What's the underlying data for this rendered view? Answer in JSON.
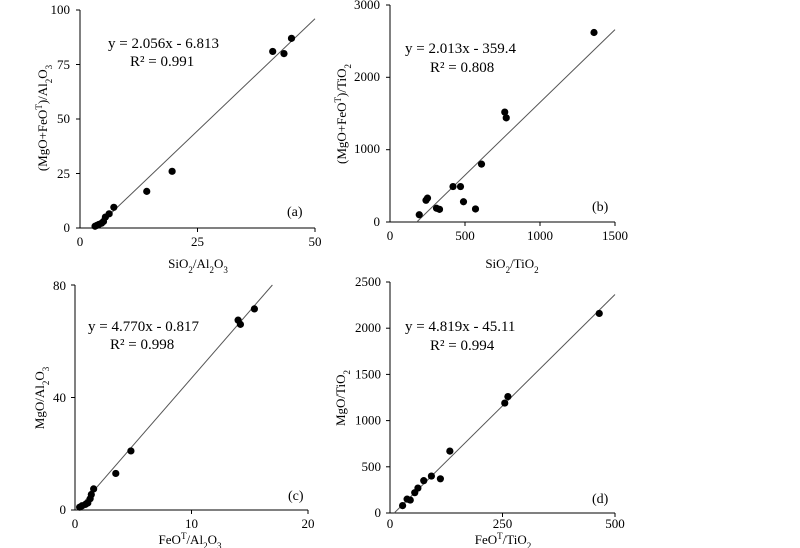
{
  "chart_data": [
    {
      "panel": "(a)",
      "type": "scatter",
      "x": [
        3.2,
        3.6,
        4.0,
        4.6,
        5.0,
        5.4,
        6.2,
        7.2,
        14.2,
        19.6,
        41.0,
        43.4,
        45.0
      ],
      "y": [
        0.8,
        1.2,
        1.6,
        2.2,
        3.0,
        5.0,
        6.5,
        9.5,
        16.8,
        26.0,
        81.0,
        80.0,
        87.0
      ],
      "fit": {
        "slope": 2.056,
        "intercept": -6.813
      },
      "equation_text": "y = 2.056x - 6.813",
      "r2_text": "R² = 0.991",
      "xlabel": "SiO2/Al2O3",
      "ylabel": "(MgO+FeOT)/Al2O3",
      "xlim": [
        0,
        50
      ],
      "ylim": [
        0,
        100
      ],
      "xticks": [
        "0",
        "25",
        "50"
      ],
      "yticks": [
        "0",
        "25",
        "50",
        "75",
        "100"
      ]
    },
    {
      "panel": "(b)",
      "type": "scatter",
      "x": [
        195,
        240,
        250,
        310,
        330,
        420,
        470,
        490,
        570,
        610,
        765,
        775,
        1360
      ],
      "y": [
        100,
        300,
        330,
        190,
        175,
        490,
        490,
        280,
        180,
        800,
        1520,
        1440,
        2620
      ],
      "fit": {
        "slope": 2.013,
        "intercept": -359.4
      },
      "equation_text": "y = 2.013x - 359.4",
      "r2_text": "R² = 0.808",
      "xlabel": "SiO2/TiO2",
      "ylabel": "(MgO+FeOT)/TiO2",
      "xlim": [
        0,
        1500
      ],
      "ylim": [
        0,
        3000
      ],
      "xticks": [
        "0",
        "500",
        "1000",
        "1500"
      ],
      "yticks": [
        "0",
        "1000",
        "2000",
        "3000"
      ]
    },
    {
      "panel": "(c)",
      "type": "scatter",
      "x": [
        0.4,
        0.6,
        0.9,
        1.1,
        1.3,
        1.4,
        1.6,
        3.5,
        4.8,
        14.0,
        14.2,
        15.4
      ],
      "y": [
        1.0,
        1.5,
        2.0,
        2.5,
        4.0,
        5.5,
        7.5,
        13.0,
        21.0,
        67.5,
        66.0,
        71.5
      ],
      "fit": {
        "slope": 4.77,
        "intercept": -0.817
      },
      "equation_text": "y = 4.770x - 0.817",
      "r2_text": "R² = 0.998",
      "xlabel": "FeOT/Al2O3",
      "ylabel": "MgO/Al2O3",
      "xlim": [
        0,
        20
      ],
      "ylim": [
        0,
        80
      ],
      "xticks": [
        "0",
        "10",
        "20"
      ],
      "yticks": [
        "0",
        "40",
        "80"
      ]
    },
    {
      "panel": "(d)",
      "type": "scatter",
      "x": [
        28,
        38,
        45,
        55,
        62,
        75,
        92,
        112,
        133,
        255,
        262,
        465
      ],
      "y": [
        80,
        150,
        140,
        220,
        270,
        350,
        400,
        370,
        670,
        1190,
        1260,
        2160
      ],
      "fit": {
        "slope": 4.819,
        "intercept": -45.11
      },
      "equation_text": "y = 4.819x - 45.11",
      "r2_text": "R² = 0.994",
      "xlabel": "FeOT/TiO2",
      "ylabel": "MgO/TiO2",
      "xlim": [
        0,
        500
      ],
      "ylim": [
        0,
        2500
      ],
      "xticks": [
        "0",
        "250",
        "500"
      ],
      "yticks": [
        "0",
        "500",
        "1000",
        "1500",
        "2000",
        "2500"
      ]
    }
  ]
}
